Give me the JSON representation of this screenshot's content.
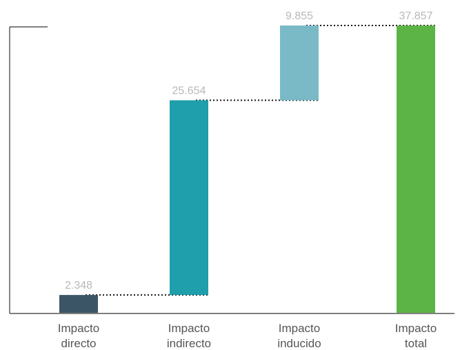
{
  "chart_data": {
    "type": "bar",
    "subtype": "waterfall",
    "categories": [
      [
        "Impacto",
        "directo"
      ],
      [
        "Impacto",
        "indirecto"
      ],
      [
        "Impacto",
        "inducido"
      ],
      [
        "Impacto",
        "total"
      ]
    ],
    "bars": [
      {
        "label": "2.348",
        "start": 0,
        "end": 2348,
        "color": "#3c5566"
      },
      {
        "label": "25.654",
        "start": 2348,
        "end": 28002,
        "color": "#1f9eab"
      },
      {
        "label": "9.855",
        "start": 28002,
        "end": 37857,
        "color": "#79bac6"
      },
      {
        "label": "37.857",
        "start": 0,
        "end": 37857,
        "color": "#5cb346"
      }
    ],
    "ylim": [
      0,
      37857
    ],
    "grid": false,
    "legend": "none",
    "connectors": "dotted"
  }
}
